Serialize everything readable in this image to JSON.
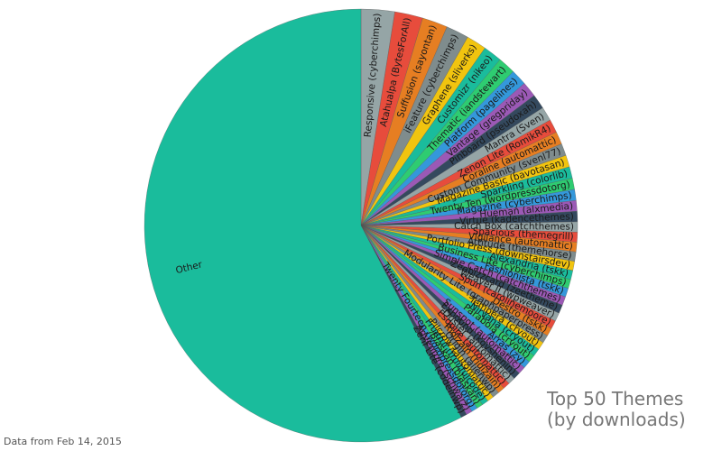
{
  "chart_data": {
    "type": "pie",
    "title": "Top 50 Themes",
    "subtitle": "(by downloads)",
    "note": "Data from Feb 14, 2015",
    "categories": [
      "Responsive (cyberchimps)",
      "Atahualpa (BytesForAll)",
      "Suffusion (sayontan)",
      "iFeature (cyberchimps)",
      "Graphene (sliverks)",
      "Customizr (nikeo)",
      "Thematic (iandstewart)",
      "Platform (pagelines)",
      "Vantage (gregpriday)",
      "Pinboard (pseudoxah)",
      "Mantra (Sven)",
      "Zenon Lite (RomikR4)",
      "Coraline (automattic)",
      "Custom Community (svenl77)",
      "Magazine Basic (bavotasan)",
      "Sparkling (colorlib)",
      "Twenty Ten (wordpressdotorg)",
      "Magazine (cyberchimps)",
      "Hueman (alxmedia)",
      "Virtue (kadencethemes)",
      "Catch Box (catchthemes)",
      "Spacious (themegrill)",
      "Vigilance (automattic)",
      "Attitude (themehorse)",
      "Portfolio Press (downstairsdev)",
      "Alexandria (tskk)",
      "Business Lite (cyberchimps)",
      "Fashionista (tskk)",
      "Simple Catch (catchthemes)",
      "Zeebizzcard (zeetheme)",
      "Weaver II (wpweaver)",
      "Spun (carolinemoore)",
      "Destro (tskk)",
      "Modularity Lite (graphpaperpress)",
      "Tempera (cryout)",
      "Nirvana (cryout)",
      "Parabola (cryout)",
      "Arras (zy)",
      "Sunspot (automattic)",
      "Expound (kovshenin)",
      "Duster (automattic)",
      "Esquire (automattic)",
      "Ridizain (ridizain)",
      "Origin (alienwp)",
      "Pilcrow (automattic)",
      "Fruitful (fruitfulcode)",
      "Blaskan (blaskan)",
      "Twenty Fourteen (wordpressdotorg)",
      "Adventure (schwarz)",
      "Zerif Lite (codeinwp)",
      "Other"
    ],
    "values": [
      2.5,
      2.1,
      1.9,
      1.7,
      1.5,
      1.4,
      1.3,
      1.2,
      1.15,
      1.1,
      1.05,
      1.0,
      0.95,
      0.9,
      0.88,
      0.86,
      0.84,
      0.82,
      0.8,
      0.78,
      0.76,
      0.74,
      0.72,
      0.7,
      0.69,
      0.68,
      0.67,
      0.66,
      0.65,
      0.64,
      0.63,
      0.62,
      0.61,
      0.6,
      0.59,
      0.58,
      0.57,
      0.56,
      0.55,
      0.54,
      0.53,
      0.52,
      0.51,
      0.5,
      0.49,
      0.48,
      0.47,
      0.46,
      0.45,
      0.44,
      57.66
    ],
    "palette": [
      "#95a5a6",
      "#e74c3c",
      "#e67e22",
      "#7f8c8d",
      "#f1c40f",
      "#1abc9c",
      "#2ecc71",
      "#3498db",
      "#9b59b6",
      "#34495e"
    ],
    "other_color": "#1abc9c"
  }
}
